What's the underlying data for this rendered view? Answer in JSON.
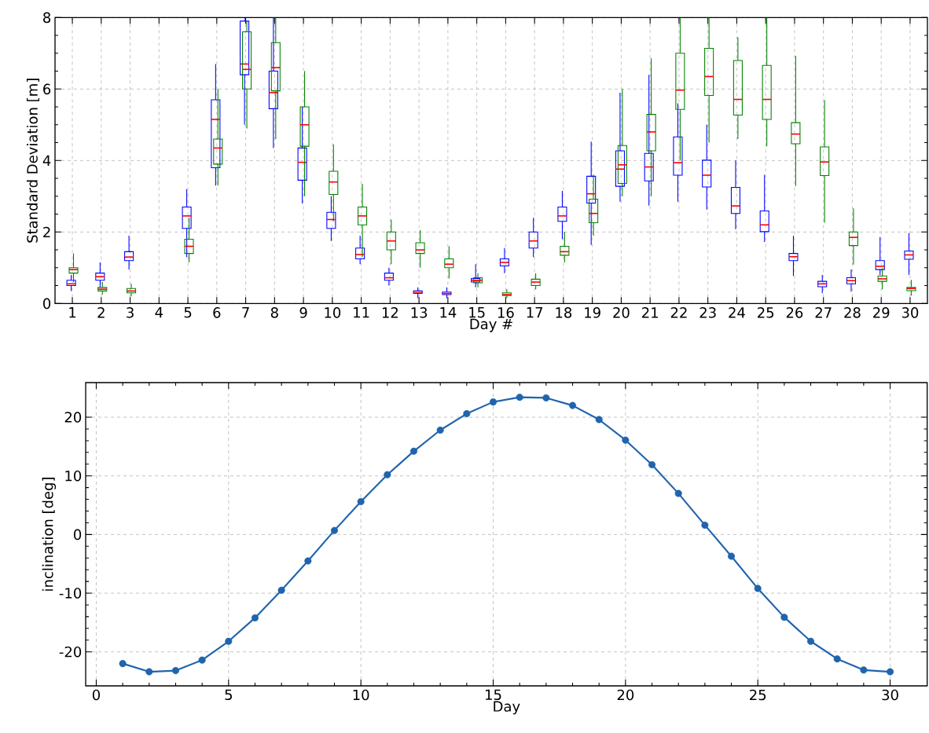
{
  "chart_data": [
    {
      "type": "box",
      "xlabel": "Day #",
      "ylabel": "Standard Deviation [m]",
      "categories": [
        "1",
        "2",
        "3",
        "4",
        "5",
        "6",
        "7",
        "8",
        "9",
        "10",
        "11",
        "12",
        "13",
        "14",
        "15",
        "16",
        "17",
        "18",
        "19",
        "20",
        "21",
        "22",
        "23",
        "24",
        "25",
        "26",
        "27",
        "28",
        "29",
        "30"
      ],
      "ylim": [
        0,
        8
      ],
      "yticks": [
        0,
        2,
        4,
        6,
        8
      ],
      "grid": true,
      "series": [
        {
          "color": "#0000ff",
          "boxes": [
            {
              "low": 0.35,
              "q1": 0.5,
              "median": 0.55,
              "q3": 0.65,
              "high": 0.8
            },
            {
              "low": 0.45,
              "q1": 0.65,
              "median": 0.75,
              "q3": 0.85,
              "high": 1.15
            },
            {
              "low": 0.95,
              "q1": 1.2,
              "median": 1.3,
              "q3": 1.45,
              "high": 1.9
            },
            null,
            {
              "low": 1.3,
              "q1": 2.1,
              "median": 2.45,
              "q3": 2.7,
              "high": 3.2
            },
            {
              "low": 3.3,
              "q1": 3.8,
              "median": 5.15,
              "q3": 5.7,
              "high": 6.7
            },
            {
              "low": 5.0,
              "q1": 6.4,
              "median": 6.7,
              "q3": 7.9,
              "high": 8.0
            },
            {
              "low": 4.35,
              "q1": 5.45,
              "median": 5.9,
              "q3": 6.5,
              "high": 8.0
            },
            {
              "low": 2.8,
              "q1": 3.45,
              "median": 3.95,
              "q3": 4.35,
              "high": 5.5
            },
            {
              "low": 1.75,
              "q1": 2.1,
              "median": 2.35,
              "q3": 2.55,
              "high": 3.0
            },
            {
              "low": 1.1,
              "q1": 1.25,
              "median": 1.37,
              "q3": 1.55,
              "high": 1.9
            },
            {
              "low": 0.5,
              "q1": 0.65,
              "median": 0.72,
              "q3": 0.85,
              "high": 1.0
            },
            {
              "low": 0.15,
              "q1": 0.28,
              "median": 0.3,
              "q3": 0.35,
              "high": 0.45
            },
            {
              "low": 0.15,
              "q1": 0.25,
              "median": 0.28,
              "q3": 0.32,
              "high": 0.45
            },
            {
              "low": 0.45,
              "q1": 0.6,
              "median": 0.65,
              "q3": 0.7,
              "high": 1.1
            },
            {
              "low": 0.85,
              "q1": 1.05,
              "median": 1.15,
              "q3": 1.25,
              "high": 1.55
            },
            {
              "low": 1.3,
              "q1": 1.55,
              "median": 1.75,
              "q3": 2.0,
              "high": 2.4
            },
            {
              "low": 1.8,
              "q1": 2.3,
              "median": 2.45,
              "q3": 2.7,
              "high": 3.15
            },
            {
              "low": 1.64,
              "q1": 2.81,
              "median": 3.07,
              "q3": 3.56,
              "high": 4.53
            },
            {
              "low": 2.85,
              "q1": 3.28,
              "median": 3.76,
              "q3": 4.27,
              "high": 5.9
            },
            {
              "low": 2.74,
              "q1": 3.43,
              "median": 3.82,
              "q3": 4.2,
              "high": 6.4
            },
            {
              "low": 2.85,
              "q1": 3.59,
              "median": 3.94,
              "q3": 4.66,
              "high": 5.6
            },
            {
              "low": 2.63,
              "q1": 3.26,
              "median": 3.59,
              "q3": 4.01,
              "high": 5.0
            },
            {
              "low": 2.08,
              "q1": 2.52,
              "median": 2.73,
              "q3": 3.25,
              "high": 4.0
            },
            {
              "low": 1.72,
              "q1": 2.01,
              "median": 2.2,
              "q3": 2.59,
              "high": 3.6
            },
            {
              "low": 0.77,
              "q1": 1.2,
              "median": 1.31,
              "q3": 1.4,
              "high": 1.9
            },
            {
              "low": 0.29,
              "q1": 0.47,
              "median": 0.55,
              "q3": 0.62,
              "high": 0.8
            },
            {
              "low": 0.33,
              "q1": 0.55,
              "median": 0.64,
              "q3": 0.72,
              "high": 0.95
            },
            {
              "low": 0.8,
              "q1": 0.95,
              "median": 1.04,
              "q3": 1.2,
              "high": 1.86
            },
            {
              "low": 0.8,
              "q1": 1.24,
              "median": 1.36,
              "q3": 1.47,
              "high": 1.97
            }
          ]
        },
        {
          "color": "#008000",
          "boxes": [
            {
              "low": 0.6,
              "q1": 0.85,
              "median": 0.95,
              "q3": 1.0,
              "high": 1.4
            },
            {
              "low": 0.25,
              "q1": 0.35,
              "median": 0.4,
              "q3": 0.45,
              "high": 0.6
            },
            {
              "low": 0.2,
              "q1": 0.3,
              "median": 0.35,
              "q3": 0.42,
              "high": 0.55
            },
            null,
            {
              "low": 1.15,
              "q1": 1.4,
              "median": 1.6,
              "q3": 1.8,
              "high": 2.4
            },
            {
              "low": 3.3,
              "q1": 3.9,
              "median": 4.35,
              "q3": 4.6,
              "high": 6.0
            },
            {
              "low": 4.9,
              "q1": 6.0,
              "median": 6.55,
              "q3": 7.6,
              "high": 7.9
            },
            {
              "low": 4.6,
              "q1": 5.95,
              "median": 6.6,
              "q3": 7.3,
              "high": 8.0
            },
            {
              "low": 3.0,
              "q1": 4.4,
              "median": 5.0,
              "q3": 5.5,
              "high": 6.5
            },
            {
              "low": 2.3,
              "q1": 3.05,
              "median": 3.4,
              "q3": 3.7,
              "high": 4.45
            },
            {
              "low": 1.3,
              "q1": 2.2,
              "median": 2.45,
              "q3": 2.7,
              "high": 3.35
            },
            {
              "low": 1.1,
              "q1": 1.5,
              "median": 1.75,
              "q3": 2.0,
              "high": 2.35
            },
            {
              "low": 1.0,
              "q1": 1.4,
              "median": 1.5,
              "q3": 1.7,
              "high": 2.05
            },
            {
              "low": 0.7,
              "q1": 1.0,
              "median": 1.1,
              "q3": 1.25,
              "high": 1.6
            },
            {
              "low": 0.45,
              "q1": 0.58,
              "median": 0.65,
              "q3": 0.72,
              "high": 0.85
            },
            {
              "low": 0.15,
              "q1": 0.22,
              "median": 0.25,
              "q3": 0.3,
              "high": 0.4
            },
            {
              "low": 0.4,
              "q1": 0.5,
              "median": 0.6,
              "q3": 0.68,
              "high": 0.85
            },
            {
              "low": 1.15,
              "q1": 1.35,
              "median": 1.45,
              "q3": 1.6,
              "high": 2.0
            },
            {
              "low": 1.9,
              "q1": 2.26,
              "median": 2.52,
              "q3": 2.92,
              "high": 3.6
            },
            {
              "low": 3.0,
              "q1": 3.36,
              "median": 3.88,
              "q3": 4.42,
              "high": 6.0
            },
            {
              "low": 3.0,
              "q1": 4.27,
              "median": 4.8,
              "q3": 5.29,
              "high": 6.86
            },
            {
              "low": 4.0,
              "q1": 5.43,
              "median": 5.97,
              "q3": 7.0,
              "high": 8.0
            },
            {
              "low": 4.5,
              "q1": 5.82,
              "median": 6.35,
              "q3": 7.14,
              "high": 8.0
            },
            {
              "low": 4.6,
              "q1": 5.27,
              "median": 5.71,
              "q3": 6.8,
              "high": 7.45
            },
            {
              "low": 4.4,
              "q1": 5.15,
              "median": 5.71,
              "q3": 6.66,
              "high": 8.0
            },
            {
              "low": 3.29,
              "q1": 4.47,
              "median": 4.74,
              "q3": 5.06,
              "high": 6.93
            },
            {
              "low": 2.26,
              "q1": 3.58,
              "median": 3.96,
              "q3": 4.38,
              "high": 5.69
            },
            {
              "low": 1.09,
              "q1": 1.62,
              "median": 1.85,
              "q3": 2.0,
              "high": 2.66
            },
            {
              "low": 0.4,
              "q1": 0.62,
              "median": 0.69,
              "q3": 0.77,
              "high": 0.99
            },
            {
              "low": 0.22,
              "q1": 0.36,
              "median": 0.42,
              "q3": 0.45,
              "high": 0.66
            }
          ]
        }
      ]
    },
    {
      "type": "line",
      "xlabel": "Day",
      "ylabel": "inclination [deg]",
      "xlim": [
        -0.4,
        31.4
      ],
      "xticks": [
        0,
        5,
        10,
        15,
        20,
        25,
        30
      ],
      "ylim": [
        -25.8,
        25.9
      ],
      "yticks": [
        -20,
        -10,
        0,
        10,
        20
      ],
      "grid": true,
      "marker": "circle",
      "line_style": "solid",
      "x": [
        1,
        2,
        3,
        4,
        5,
        6,
        7,
        8,
        9,
        10,
        11,
        12,
        13,
        14,
        15,
        16,
        17,
        18,
        19,
        20,
        21,
        22,
        23,
        24,
        25,
        26,
        27,
        28,
        29,
        30
      ],
      "series": [
        {
          "color": "#1f64ad",
          "values": [
            -22.0,
            -23.4,
            -23.2,
            -21.4,
            -18.2,
            -14.2,
            -9.5,
            -4.5,
            0.7,
            5.6,
            10.2,
            14.2,
            17.8,
            20.6,
            22.6,
            23.4,
            23.3,
            22.0,
            19.6,
            16.1,
            11.9,
            7.0,
            1.6,
            -3.7,
            -9.2,
            -14.1,
            -18.2,
            -21.2,
            -23.1,
            -23.4
          ]
        }
      ]
    }
  ]
}
